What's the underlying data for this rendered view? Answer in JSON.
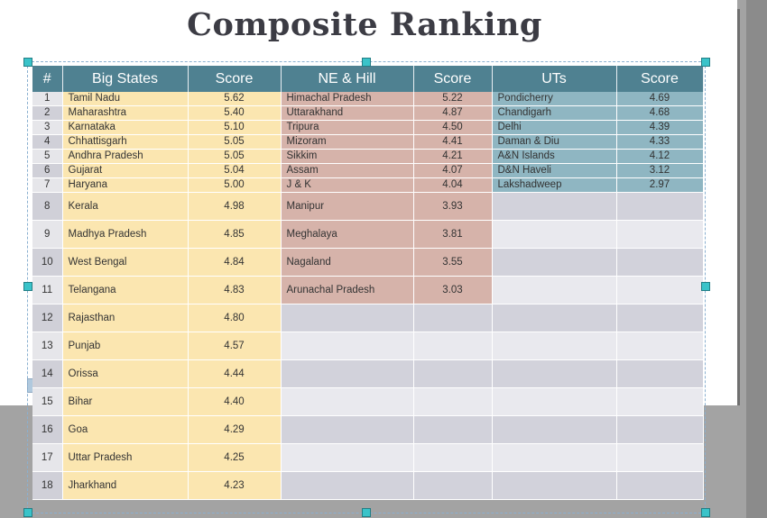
{
  "title": "Composite Ranking",
  "headers": [
    "#",
    "Big States",
    "Score",
    "NE & Hill",
    "Score",
    "UTs",
    "Score"
  ],
  "rows": [
    {
      "rank": "1",
      "big": "Tamil Nadu",
      "big_score": "5.62",
      "ne": "Himachal Pradesh",
      "ne_score": "5.22",
      "ut": "Pondicherry",
      "ut_score": "4.69"
    },
    {
      "rank": "2",
      "big": "Maharashtra",
      "big_score": "5.40",
      "ne": "Uttarakhand",
      "ne_score": "4.87",
      "ut": "Chandigarh",
      "ut_score": "4.68"
    },
    {
      "rank": "3",
      "big": "Karnataka",
      "big_score": "5.10",
      "ne": "Tripura",
      "ne_score": "4.50",
      "ut": "Delhi",
      "ut_score": "4.39"
    },
    {
      "rank": "4",
      "big": "Chhattisgarh",
      "big_score": "5.05",
      "ne": "Mizoram",
      "ne_score": "4.41",
      "ut": "Daman & Diu",
      "ut_score": "4.33"
    },
    {
      "rank": "5",
      "big": "Andhra Pradesh",
      "big_score": "5.05",
      "ne": "Sikkim",
      "ne_score": "4.21",
      "ut": "A&N Islands",
      "ut_score": "4.12"
    },
    {
      "rank": "6",
      "big": "Gujarat",
      "big_score": "5.04",
      "ne": "Assam",
      "ne_score": "4.07",
      "ut": "D&N Haveli",
      "ut_score": "3.12"
    },
    {
      "rank": "7",
      "big": "Haryana",
      "big_score": "5.00",
      "ne": "J & K",
      "ne_score": "4.04",
      "ut": "Lakshadweep",
      "ut_score": "2.97"
    },
    {
      "rank": "8",
      "big": "Kerala",
      "big_score": "4.98",
      "ne": "Manipur",
      "ne_score": "3.93",
      "ut": "",
      "ut_score": ""
    },
    {
      "rank": "9",
      "big": "Madhya Pradesh",
      "big_score": "4.85",
      "ne": "Meghalaya",
      "ne_score": "3.81",
      "ut": "",
      "ut_score": ""
    },
    {
      "rank": "10",
      "big": "West Bengal",
      "big_score": "4.84",
      "ne": "Nagaland",
      "ne_score": "3.55",
      "ut": "",
      "ut_score": ""
    },
    {
      "rank": "11",
      "big": "Telangana",
      "big_score": "4.83",
      "ne": "Arunachal Pradesh",
      "ne_score": "3.03",
      "ut": "",
      "ut_score": ""
    },
    {
      "rank": "12",
      "big": "Rajasthan",
      "big_score": "4.80",
      "ne": "",
      "ne_score": "",
      "ut": "",
      "ut_score": ""
    },
    {
      "rank": "13",
      "big": "Punjab",
      "big_score": "4.57",
      "ne": "",
      "ne_score": "",
      "ut": "",
      "ut_score": ""
    },
    {
      "rank": "14",
      "big": "Orissa",
      "big_score": "4.44",
      "ne": "",
      "ne_score": "",
      "ut": "",
      "ut_score": ""
    },
    {
      "rank": "15",
      "big": "Bihar",
      "big_score": "4.40",
      "ne": "",
      "ne_score": "",
      "ut": "",
      "ut_score": ""
    },
    {
      "rank": "16",
      "big": "Goa",
      "big_score": "4.29",
      "ne": "",
      "ne_score": "",
      "ut": "",
      "ut_score": ""
    },
    {
      "rank": "17",
      "big": "Uttar Pradesh",
      "big_score": "4.25",
      "ne": "",
      "ne_score": "",
      "ut": "",
      "ut_score": ""
    },
    {
      "rank": "18",
      "big": "Jharkhand",
      "big_score": "4.23",
      "ne": "",
      "ne_score": "",
      "ut": "",
      "ut_score": ""
    }
  ],
  "colors": {
    "header": "#4f8191",
    "big_states": "#fbe6b0",
    "ne_hill": "#d6b3aa",
    "uts": "#8fb6c2",
    "selection_handle": "#3ac3c9"
  }
}
